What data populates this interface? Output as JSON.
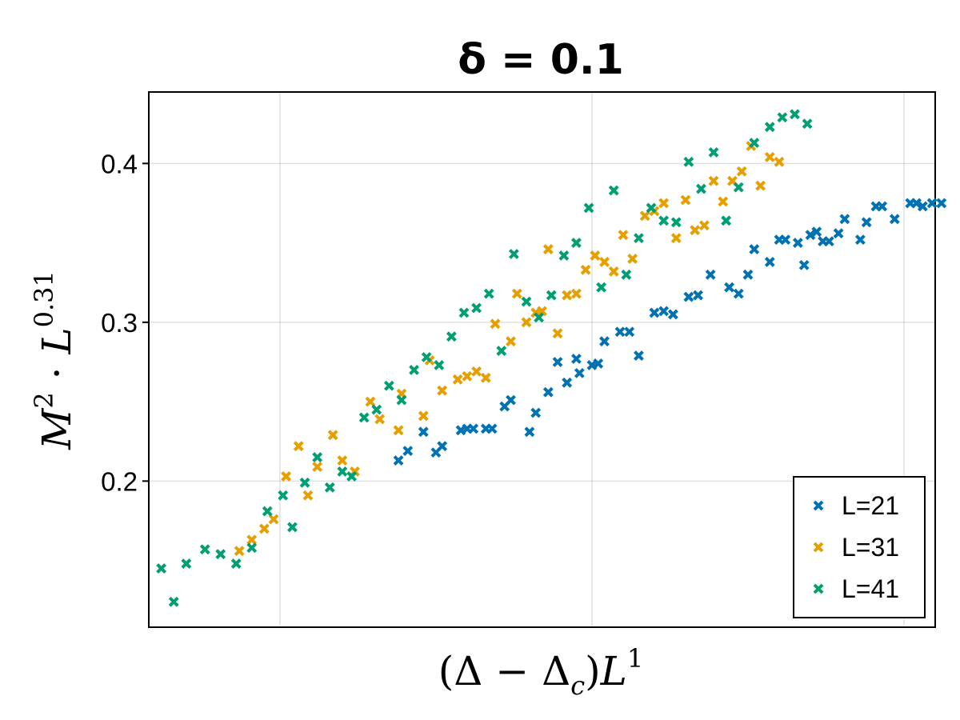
{
  "chart_data": {
    "type": "scatter",
    "title": "δ = 0.1",
    "xlabel": "(Δ − Δ_c)L^1",
    "ylabel": "M^2 · L^0.31",
    "xlim": [
      -0.21,
      1.05
    ],
    "ylim": [
      0.108,
      0.445
    ],
    "xticks": [
      0,
      0.5,
      1
    ],
    "yticks": [
      0.2,
      0.3,
      0.4
    ],
    "ytick_labels": [
      "0.2",
      "0.3",
      "0.4"
    ],
    "grid": true,
    "legend_position": "bottom-right",
    "marker": "x",
    "series": [
      {
        "name": "L=21",
        "color": "#0072b2",
        "points": [
          [
            0.19,
            0.213
          ],
          [
            0.205,
            0.219
          ],
          [
            0.23,
            0.231
          ],
          [
            0.25,
            0.218
          ],
          [
            0.26,
            0.222
          ],
          [
            0.29,
            0.232
          ],
          [
            0.3,
            0.233
          ],
          [
            0.31,
            0.233
          ],
          [
            0.33,
            0.233
          ],
          [
            0.34,
            0.233
          ],
          [
            0.36,
            0.247
          ],
          [
            0.37,
            0.251
          ],
          [
            0.4,
            0.231
          ],
          [
            0.41,
            0.243
          ],
          [
            0.43,
            0.256
          ],
          [
            0.445,
            0.275
          ],
          [
            0.46,
            0.262
          ],
          [
            0.475,
            0.277
          ],
          [
            0.48,
            0.268
          ],
          [
            0.5,
            0.273
          ],
          [
            0.51,
            0.274
          ],
          [
            0.52,
            0.288
          ],
          [
            0.545,
            0.294
          ],
          [
            0.56,
            0.294
          ],
          [
            0.575,
            0.279
          ],
          [
            0.6,
            0.306
          ],
          [
            0.615,
            0.307
          ],
          [
            0.63,
            0.305
          ],
          [
            0.655,
            0.316
          ],
          [
            0.67,
            0.317
          ],
          [
            0.69,
            0.33
          ],
          [
            0.72,
            0.322
          ],
          [
            0.735,
            0.318
          ],
          [
            0.75,
            0.33
          ],
          [
            0.76,
            0.346
          ],
          [
            0.785,
            0.338
          ],
          [
            0.8,
            0.352
          ],
          [
            0.81,
            0.352
          ],
          [
            0.83,
            0.35
          ],
          [
            0.84,
            0.336
          ],
          [
            0.85,
            0.355
          ],
          [
            0.86,
            0.357
          ],
          [
            0.87,
            0.351
          ],
          [
            0.88,
            0.351
          ],
          [
            0.895,
            0.356
          ],
          [
            0.905,
            0.365
          ],
          [
            0.93,
            0.352
          ],
          [
            0.94,
            0.363
          ],
          [
            0.955,
            0.373
          ],
          [
            0.965,
            0.373
          ],
          [
            0.985,
            0.365
          ],
          [
            1.01,
            0.375
          ],
          [
            1.02,
            0.375
          ],
          [
            1.03,
            0.373
          ],
          [
            1.045,
            0.375
          ],
          [
            1.06,
            0.375
          ]
        ]
      },
      {
        "name": "L=31",
        "color": "#e69f00",
        "points": [
          [
            -0.065,
            0.156
          ],
          [
            -0.045,
            0.163
          ],
          [
            -0.025,
            0.17
          ],
          [
            -0.01,
            0.176
          ],
          [
            0.01,
            0.203
          ],
          [
            0.03,
            0.222
          ],
          [
            0.045,
            0.191
          ],
          [
            0.06,
            0.209
          ],
          [
            0.085,
            0.229
          ],
          [
            0.1,
            0.213
          ],
          [
            0.12,
            0.206
          ],
          [
            0.145,
            0.25
          ],
          [
            0.16,
            0.239
          ],
          [
            0.19,
            0.232
          ],
          [
            0.195,
            0.255
          ],
          [
            0.23,
            0.241
          ],
          [
            0.24,
            0.276
          ],
          [
            0.26,
            0.257
          ],
          [
            0.285,
            0.264
          ],
          [
            0.3,
            0.266
          ],
          [
            0.315,
            0.269
          ],
          [
            0.33,
            0.265
          ],
          [
            0.345,
            0.299
          ],
          [
            0.37,
            0.288
          ],
          [
            0.38,
            0.318
          ],
          [
            0.395,
            0.3
          ],
          [
            0.41,
            0.306
          ],
          [
            0.42,
            0.307
          ],
          [
            0.43,
            0.346
          ],
          [
            0.445,
            0.293
          ],
          [
            0.46,
            0.317
          ],
          [
            0.475,
            0.318
          ],
          [
            0.49,
            0.333
          ],
          [
            0.505,
            0.342
          ],
          [
            0.52,
            0.338
          ],
          [
            0.535,
            0.332
          ],
          [
            0.55,
            0.355
          ],
          [
            0.565,
            0.34
          ],
          [
            0.585,
            0.367
          ],
          [
            0.6,
            0.37
          ],
          [
            0.615,
            0.375
          ],
          [
            0.635,
            0.353
          ],
          [
            0.65,
            0.377
          ],
          [
            0.665,
            0.358
          ],
          [
            0.68,
            0.361
          ],
          [
            0.695,
            0.389
          ],
          [
            0.71,
            0.376
          ],
          [
            0.725,
            0.389
          ],
          [
            0.74,
            0.395
          ],
          [
            0.755,
            0.411
          ],
          [
            0.77,
            0.386
          ],
          [
            0.785,
            0.404
          ],
          [
            0.8,
            0.401
          ]
        ]
      },
      {
        "name": "L=41",
        "color": "#009e73",
        "points": [
          [
            -0.19,
            0.145
          ],
          [
            -0.17,
            0.124
          ],
          [
            -0.15,
            0.148
          ],
          [
            -0.12,
            0.157
          ],
          [
            -0.095,
            0.154
          ],
          [
            -0.07,
            0.148
          ],
          [
            -0.045,
            0.158
          ],
          [
            -0.02,
            0.181
          ],
          [
            0.005,
            0.191
          ],
          [
            0.02,
            0.171
          ],
          [
            0.04,
            0.199
          ],
          [
            0.06,
            0.215
          ],
          [
            0.08,
            0.196
          ],
          [
            0.1,
            0.206
          ],
          [
            0.115,
            0.203
          ],
          [
            0.135,
            0.24
          ],
          [
            0.155,
            0.245
          ],
          [
            0.175,
            0.26
          ],
          [
            0.195,
            0.251
          ],
          [
            0.215,
            0.27
          ],
          [
            0.235,
            0.278
          ],
          [
            0.255,
            0.273
          ],
          [
            0.275,
            0.291
          ],
          [
            0.295,
            0.306
          ],
          [
            0.315,
            0.309
          ],
          [
            0.335,
            0.318
          ],
          [
            0.355,
            0.282
          ],
          [
            0.375,
            0.343
          ],
          [
            0.395,
            0.313
          ],
          [
            0.415,
            0.303
          ],
          [
            0.435,
            0.317
          ],
          [
            0.455,
            0.342
          ],
          [
            0.475,
            0.35
          ],
          [
            0.495,
            0.372
          ],
          [
            0.515,
            0.322
          ],
          [
            0.535,
            0.383
          ],
          [
            0.555,
            0.33
          ],
          [
            0.575,
            0.353
          ],
          [
            0.595,
            0.372
          ],
          [
            0.615,
            0.364
          ],
          [
            0.635,
            0.363
          ],
          [
            0.655,
            0.401
          ],
          [
            0.675,
            0.384
          ],
          [
            0.695,
            0.407
          ],
          [
            0.715,
            0.364
          ],
          [
            0.735,
            0.385
          ],
          [
            0.76,
            0.413
          ],
          [
            0.785,
            0.423
          ],
          [
            0.805,
            0.429
          ],
          [
            0.825,
            0.431
          ],
          [
            0.845,
            0.425
          ]
        ]
      }
    ]
  }
}
